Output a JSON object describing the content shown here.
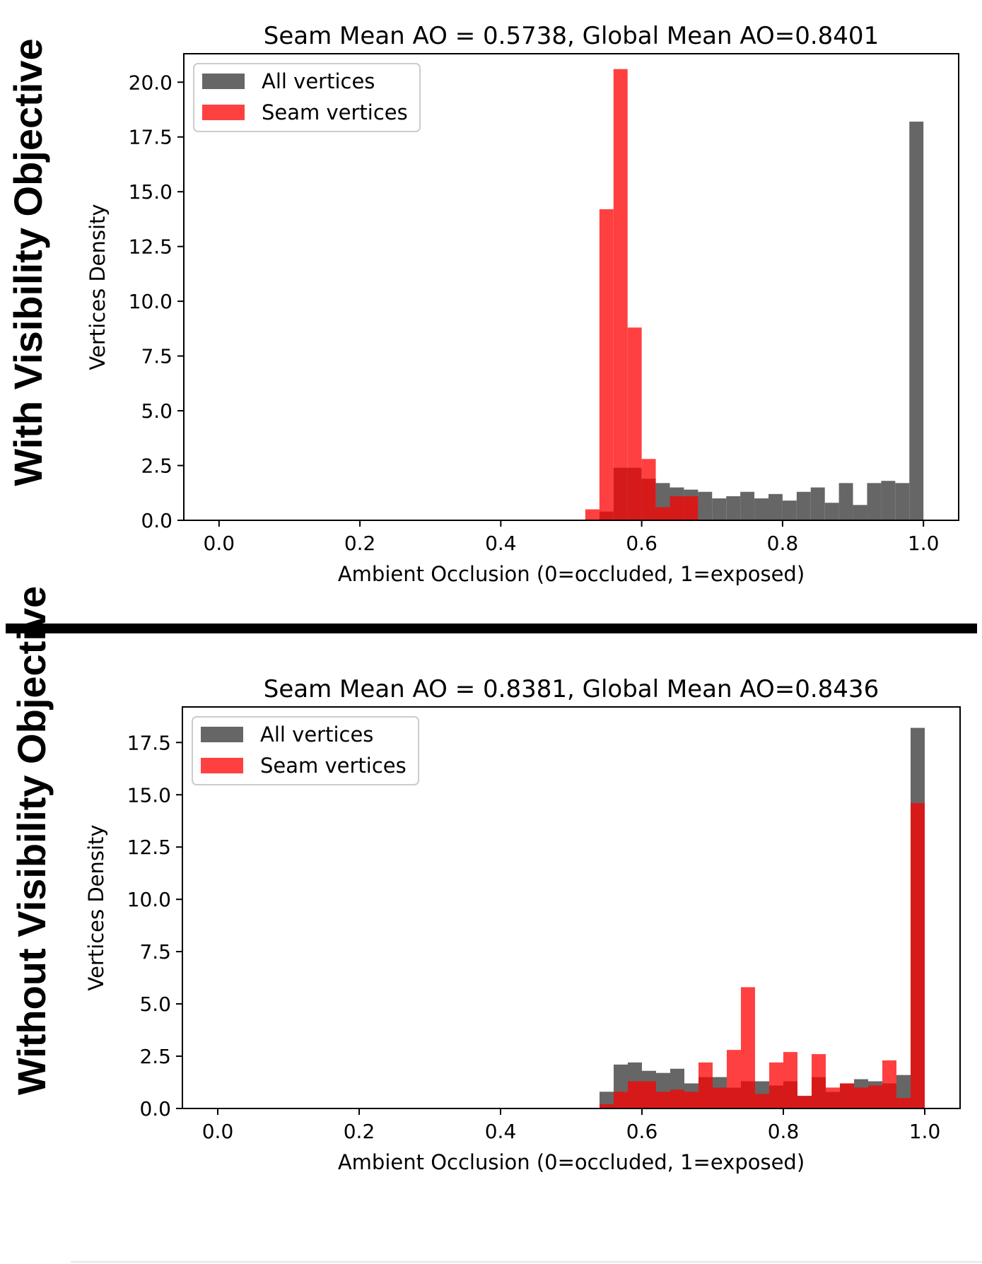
{
  "side_labels": {
    "top": "With Visibility Objective",
    "bottom": "Without Visibility Objective"
  },
  "colors": {
    "all_vertices": "#666666",
    "seam_vertices": "#ff4040",
    "overlap": "#d61a1a",
    "axes": "#000000",
    "divider": "#000000"
  },
  "chart_data": [
    {
      "type": "bar",
      "subtype": "overlaid-histogram",
      "title": "Seam Mean AO = 0.5738, Global Mean AO=0.8401",
      "xlabel": "Ambient Occlusion (0=occluded, 1=exposed)",
      "ylabel": "Vertices Density",
      "xlim": [
        -0.05,
        1.05
      ],
      "ylim": [
        0,
        21.3
      ],
      "xticks": [
        "0.0",
        "0.2",
        "0.4",
        "0.6",
        "0.8",
        "1.0"
      ],
      "yticks": [
        "0.0",
        "2.5",
        "5.0",
        "7.5",
        "10.0",
        "12.5",
        "15.0",
        "17.5",
        "20.0"
      ],
      "bin_width": 0.02,
      "legend_position": "top-left",
      "legend": [
        "All vertices",
        "Seam vertices"
      ],
      "series": [
        {
          "name": "All vertices",
          "bin_starts": [
            0.54,
            0.56,
            0.58,
            0.6,
            0.62,
            0.64,
            0.66,
            0.68,
            0.7,
            0.72,
            0.74,
            0.76,
            0.78,
            0.8,
            0.82,
            0.84,
            0.86,
            0.88,
            0.9,
            0.92,
            0.94,
            0.96,
            0.98
          ],
          "values": [
            0.4,
            2.4,
            2.4,
            1.9,
            1.7,
            1.5,
            1.4,
            1.3,
            1.0,
            1.1,
            1.3,
            1.0,
            1.2,
            0.9,
            1.3,
            1.5,
            0.8,
            1.7,
            0.7,
            1.7,
            1.8,
            1.7,
            18.2
          ]
        },
        {
          "name": "Seam vertices",
          "bin_starts": [
            0.52,
            0.54,
            0.56,
            0.58,
            0.6,
            0.62,
            0.64,
            0.66
          ],
          "values": [
            0.5,
            14.2,
            20.6,
            8.8,
            2.8,
            0.6,
            1.1,
            1.1
          ]
        }
      ]
    },
    {
      "type": "bar",
      "subtype": "overlaid-histogram",
      "title": "Seam Mean AO = 0.8381, Global Mean AO=0.8436",
      "xlabel": "Ambient Occlusion (0=occluded, 1=exposed)",
      "ylabel": "Vertices Density",
      "xlim": [
        -0.05,
        1.05
      ],
      "ylim": [
        0,
        19.2
      ],
      "xticks": [
        "0.0",
        "0.2",
        "0.4",
        "0.6",
        "0.8",
        "1.0"
      ],
      "yticks": [
        "0.0",
        "2.5",
        "5.0",
        "7.5",
        "10.0",
        "12.5",
        "15.0",
        "17.5"
      ],
      "bin_width": 0.02,
      "legend_position": "top-left",
      "legend": [
        "All vertices",
        "Seam vertices"
      ],
      "series": [
        {
          "name": "All vertices",
          "bin_starts": [
            0.54,
            0.56,
            0.58,
            0.6,
            0.62,
            0.64,
            0.66,
            0.68,
            0.7,
            0.72,
            0.74,
            0.76,
            0.78,
            0.8,
            0.82,
            0.84,
            0.86,
            0.88,
            0.9,
            0.92,
            0.94,
            0.96,
            0.98
          ],
          "values": [
            0.8,
            2.1,
            2.2,
            1.8,
            1.7,
            1.9,
            1.2,
            1.5,
            1.5,
            1.0,
            1.3,
            1.3,
            1.1,
            1.3,
            0.6,
            1.5,
            0.8,
            1.2,
            1.4,
            1.3,
            1.2,
            1.6,
            18.2
          ]
        },
        {
          "name": "Seam vertices",
          "bin_starts": [
            0.54,
            0.56,
            0.58,
            0.6,
            0.62,
            0.64,
            0.66,
            0.68,
            0.7,
            0.72,
            0.74,
            0.76,
            0.78,
            0.8,
            0.82,
            0.84,
            0.86,
            0.88,
            0.9,
            0.92,
            0.94,
            0.96,
            0.98
          ],
          "values": [
            0.2,
            0.8,
            1.3,
            1.3,
            0.8,
            0.9,
            0.8,
            2.2,
            1.0,
            2.8,
            5.8,
            0.7,
            2.2,
            2.7,
            0.6,
            2.6,
            1.0,
            1.2,
            1.0,
            1.1,
            2.3,
            0.5,
            14.6
          ]
        }
      ]
    }
  ]
}
